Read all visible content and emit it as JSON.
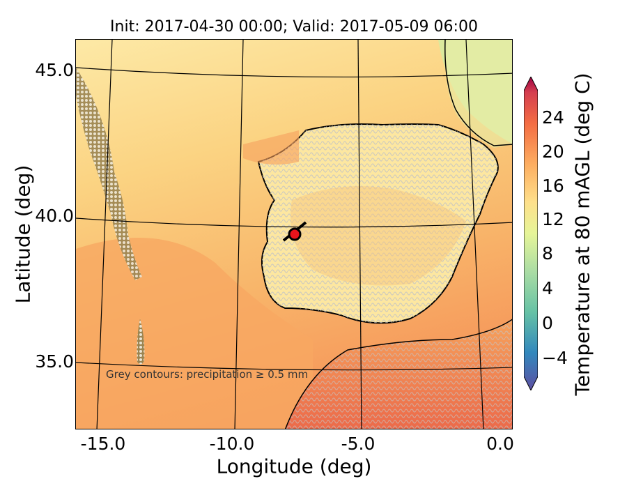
{
  "title": "Init: 2017-04-30 00:00; Valid: 2017-05-09 06:00",
  "axes": {
    "xlabel": "Longitude (deg)",
    "ylabel": "Latitude (deg)",
    "x_ticks": [
      "-15.0",
      "-10.0",
      "-5.0",
      "0.0"
    ],
    "y_ticks": [
      "45.0",
      "40.0",
      "35.0"
    ]
  },
  "note": "Grey contours: precipitation ≥ 0.5 mm",
  "colorbar": {
    "label": "Temperature at 80 mAGL (deg C)",
    "ticks": [
      "−4",
      "0",
      "4",
      "8",
      "12",
      "16",
      "20",
      "24"
    ],
    "range": [
      -6,
      27
    ],
    "extend": "both",
    "colormap": "Spectral_r"
  },
  "marker": {
    "lon": -7.7,
    "lat": 39.4,
    "color": "#e8141c"
  },
  "colors": {
    "ocean_warm": "#f7a05a",
    "ocean_mild": "#fbd78b",
    "land": "#fdeeb0",
    "alps_cool": "#d9ea9a",
    "precip": "#c8c8c8"
  }
}
